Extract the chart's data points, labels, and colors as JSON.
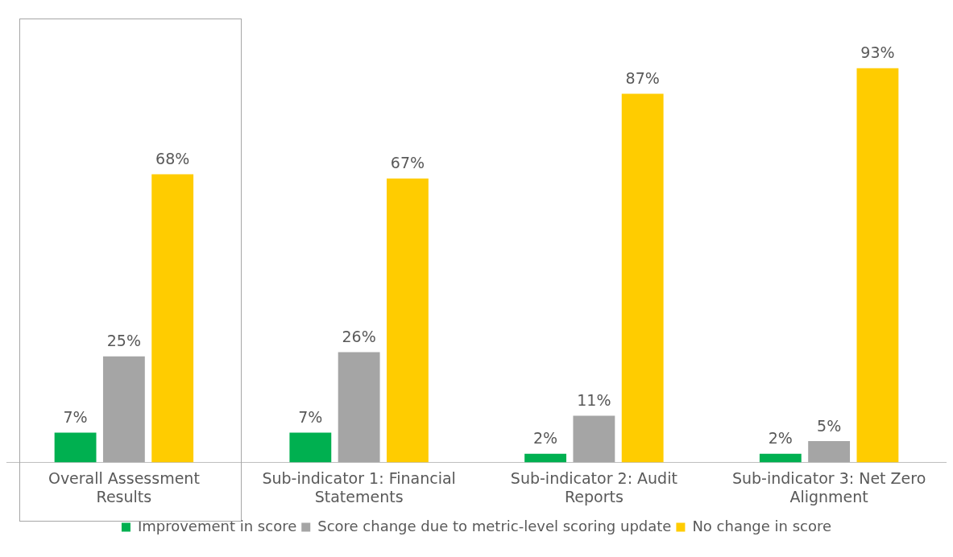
{
  "chart_data": {
    "type": "bar",
    "categories": [
      "Overall Assessment Results",
      "Sub-indicator 1: Financial Statements",
      "Sub-indicator 2: Audit Reports",
      "Sub-indicator 3: Net Zero Alignment"
    ],
    "series": [
      {
        "name": "Improvement in score",
        "color": "#00b050",
        "values": [
          7,
          7,
          2,
          2
        ],
        "value_labels": [
          "7%",
          "7%",
          "2%",
          "2%"
        ]
      },
      {
        "name": "Score change due to metric-level scoring update",
        "color": "#a5a5a5",
        "values": [
          25,
          26,
          11,
          5
        ],
        "value_labels": [
          "25%",
          "26%",
          "11%",
          "5%"
        ]
      },
      {
        "name": "No change in score",
        "color": "#ffcc00",
        "values": [
          68,
          67,
          87,
          93
        ],
        "value_labels": [
          "68%",
          "67%",
          "87%",
          "93%"
        ]
      }
    ],
    "legend": "bottom",
    "grid": false
  }
}
